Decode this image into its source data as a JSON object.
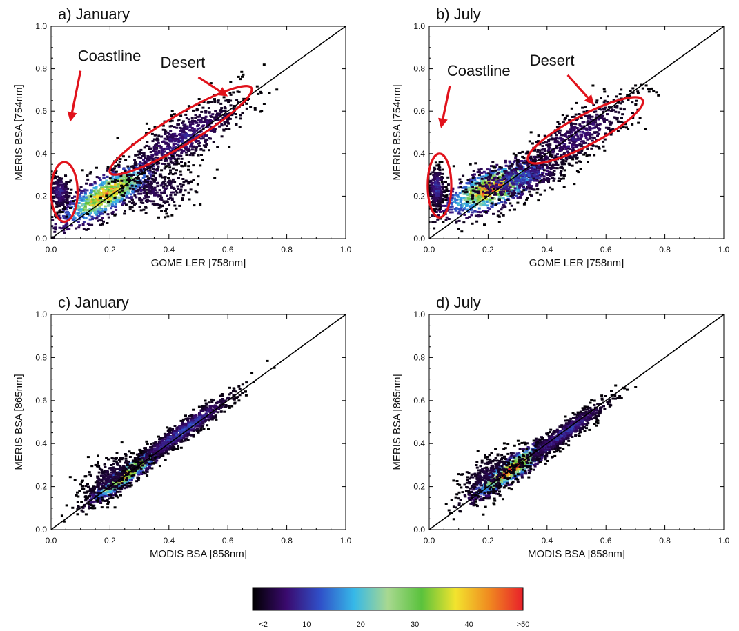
{
  "chart_data": [
    {
      "type": "heatmap",
      "title": "a) January",
      "xlabel": "GOME LER [758nm]",
      "ylabel": "MERIS BSA [754nm]",
      "xlim": [
        0,
        1
      ],
      "ylim": [
        0,
        1
      ],
      "xticks": [
        "0.0",
        "0.2",
        "0.4",
        "0.6",
        "0.8",
        "1.0"
      ],
      "yticks": [
        "0.0",
        "0.2",
        "0.4",
        "0.6",
        "0.8",
        "1.0"
      ],
      "one_to_one_line": true,
      "density_clusters": [
        {
          "x": 0.19,
          "y": 0.21,
          "sx": 0.085,
          "sy": 0.05,
          "peak": 42,
          "tilt": 0.75,
          "n": 900
        },
        {
          "x": 0.45,
          "y": 0.47,
          "sx": 0.11,
          "sy": 0.06,
          "peak": 8,
          "tilt": 0.75,
          "n": 700
        },
        {
          "x": 0.03,
          "y": 0.22,
          "sx": 0.02,
          "sy": 0.045,
          "peak": 8,
          "tilt": 0,
          "n": 220
        },
        {
          "x": 0.36,
          "y": 0.22,
          "sx": 0.07,
          "sy": 0.05,
          "peak": 5,
          "tilt": 0.2,
          "n": 250
        }
      ],
      "annotations": [
        {
          "text": "Coastline",
          "ellipse": {
            "cx": 0.045,
            "cy": 0.22,
            "rx": 0.045,
            "ry": 0.14,
            "angle": 0
          },
          "arrow_from": [
            0.1,
            0.79
          ],
          "arrow_to": [
            0.065,
            0.55
          ]
        },
        {
          "text": "Desert",
          "ellipse": {
            "cx": 0.44,
            "cy": 0.51,
            "rx": 0.28,
            "ry": 0.07,
            "angle": 31
          },
          "arrow_from": [
            0.5,
            0.76
          ],
          "arrow_to": [
            0.6,
            0.67
          ]
        }
      ]
    },
    {
      "type": "heatmap",
      "title": "b) July",
      "xlabel": "GOME LER [758nm]",
      "ylabel": "MERIS BSA [754nm]",
      "xlim": [
        0,
        1
      ],
      "ylim": [
        0,
        1
      ],
      "xticks": [
        "0.0",
        "0.2",
        "0.4",
        "0.6",
        "0.8",
        "1.0"
      ],
      "yticks": [
        "0.0",
        "0.2",
        "0.4",
        "0.6",
        "0.8",
        "1.0"
      ],
      "one_to_one_line": true,
      "density_clusters": [
        {
          "x": 0.22,
          "y": 0.24,
          "sx": 0.09,
          "sy": 0.05,
          "peak": 46,
          "tilt": 0.5,
          "n": 1000
        },
        {
          "x": 0.5,
          "y": 0.48,
          "sx": 0.1,
          "sy": 0.06,
          "peak": 7,
          "tilt": 0.8,
          "n": 600
        },
        {
          "x": 0.025,
          "y": 0.24,
          "sx": 0.015,
          "sy": 0.05,
          "peak": 10,
          "tilt": 0,
          "n": 250
        },
        {
          "x": 0.3,
          "y": 0.28,
          "sx": 0.08,
          "sy": 0.04,
          "peak": 12,
          "tilt": 0.3,
          "n": 400
        }
      ],
      "annotations": [
        {
          "text": "Coastline",
          "ellipse": {
            "cx": 0.035,
            "cy": 0.25,
            "rx": 0.04,
            "ry": 0.15,
            "angle": 0
          },
          "arrow_from": [
            0.07,
            0.72
          ],
          "arrow_to": [
            0.04,
            0.52
          ]
        },
        {
          "text": "Desert",
          "ellipse": {
            "cx": 0.53,
            "cy": 0.51,
            "rx": 0.22,
            "ry": 0.07,
            "angle": 28
          },
          "arrow_from": [
            0.47,
            0.77
          ],
          "arrow_to": [
            0.56,
            0.63
          ]
        }
      ]
    },
    {
      "type": "heatmap",
      "title": "c) January",
      "xlabel": "MODIS BSA [858nm]",
      "ylabel": "MERIS BSA [865nm]",
      "xlim": [
        0,
        1
      ],
      "ylim": [
        0,
        1
      ],
      "xticks": [
        "0.0",
        "0.2",
        "0.4",
        "0.6",
        "0.8",
        "1.0"
      ],
      "yticks": [
        "0.0",
        "0.2",
        "0.4",
        "0.6",
        "0.8",
        "1.0"
      ],
      "one_to_one_line": true,
      "density_clusters": [
        {
          "x": 0.26,
          "y": 0.26,
          "sx": 0.065,
          "sy": 0.025,
          "peak": 45,
          "tilt": 0.98,
          "n": 1000
        },
        {
          "x": 0.45,
          "y": 0.46,
          "sx": 0.09,
          "sy": 0.025,
          "peak": 12,
          "tilt": 0.97,
          "n": 800
        },
        {
          "x": 0.2,
          "y": 0.24,
          "sx": 0.05,
          "sy": 0.05,
          "peak": 4,
          "tilt": 0.6,
          "n": 300
        }
      ],
      "annotations": []
    },
    {
      "type": "heatmap",
      "title": "d) July",
      "xlabel": "MODIS BSA [858nm]",
      "ylabel": "MERIS BSA [865nm]",
      "xlim": [
        0,
        1
      ],
      "ylim": [
        0,
        1
      ],
      "xticks": [
        "0.0",
        "0.2",
        "0.4",
        "0.6",
        "0.8",
        "1.0"
      ],
      "yticks": [
        "0.0",
        "0.2",
        "0.4",
        "0.6",
        "0.8",
        "1.0"
      ],
      "one_to_one_line": true,
      "density_clusters": [
        {
          "x": 0.28,
          "y": 0.28,
          "sx": 0.07,
          "sy": 0.03,
          "peak": 48,
          "tilt": 0.9,
          "n": 1000
        },
        {
          "x": 0.46,
          "y": 0.45,
          "sx": 0.08,
          "sy": 0.025,
          "peak": 10,
          "tilt": 0.95,
          "n": 700
        },
        {
          "x": 0.2,
          "y": 0.25,
          "sx": 0.05,
          "sy": 0.05,
          "peak": 4,
          "tilt": 0.5,
          "n": 300
        }
      ],
      "annotations": []
    }
  ],
  "colorbar": {
    "tick_labels": [
      "<2",
      "10",
      "20",
      "30",
      "40",
      ">50"
    ],
    "tick_values": [
      2,
      10,
      20,
      30,
      40,
      50
    ],
    "range": [
      0,
      50
    ],
    "stops": [
      "#000000",
      "#3a0a6e",
      "#3050c8",
      "#36b8e8",
      "#a8d890",
      "#5ac23c",
      "#f2e42e",
      "#f08a20",
      "#e8202a"
    ]
  },
  "annotation_color": "#e1121b",
  "line_color": "#000000"
}
